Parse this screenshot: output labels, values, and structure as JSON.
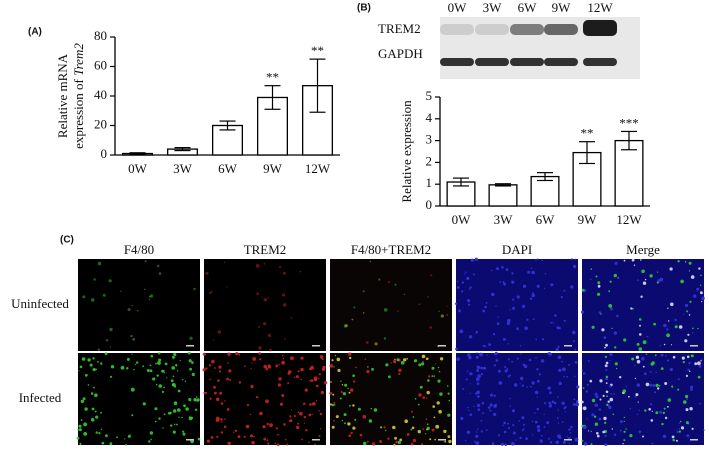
{
  "panels": {
    "a": "(A)",
    "b": "(B)",
    "c": "(C)"
  },
  "chart_data": [
    {
      "type": "bar",
      "categories": [
        "0W",
        "3W",
        "6W",
        "9W",
        "12W"
      ],
      "values": [
        1,
        4,
        20,
        39,
        47
      ],
      "errors": [
        0.5,
        1,
        3,
        8,
        18
      ],
      "annotations": [
        null,
        null,
        null,
        "**",
        "**"
      ],
      "ylabel": [
        "Relative mRNA",
        "expression of ",
        "Trem2"
      ],
      "ylim": [
        0,
        80
      ],
      "yticks": [
        0,
        20,
        40,
        60,
        80
      ],
      "color": "#ffffff",
      "edgecolor": "#000000"
    },
    {
      "type": "bar",
      "categories": [
        "0W",
        "3W",
        "6W",
        "9W",
        "12W"
      ],
      "values": [
        1.1,
        0.97,
        1.35,
        2.45,
        3.0
      ],
      "errors": [
        0.18,
        0.05,
        0.18,
        0.5,
        0.42
      ],
      "annotations": [
        null,
        null,
        null,
        "**",
        "***"
      ],
      "ylabel": [
        "Relative expression"
      ],
      "ylim": [
        0,
        5
      ],
      "yticks": [
        0,
        1,
        2,
        3,
        4,
        5
      ],
      "color": "#ffffff",
      "edgecolor": "#000000"
    }
  ],
  "blot": {
    "lanes": [
      "0W",
      "3W",
      "6W",
      "9W",
      "12W"
    ],
    "rows": [
      "TREM2",
      "GAPDH"
    ]
  },
  "microscopy": {
    "columns": [
      "F4/80",
      "TREM2",
      "F4/80+TREM2",
      "DAPI",
      "Merge"
    ],
    "rows": [
      "Uninfected",
      "Infected"
    ]
  }
}
